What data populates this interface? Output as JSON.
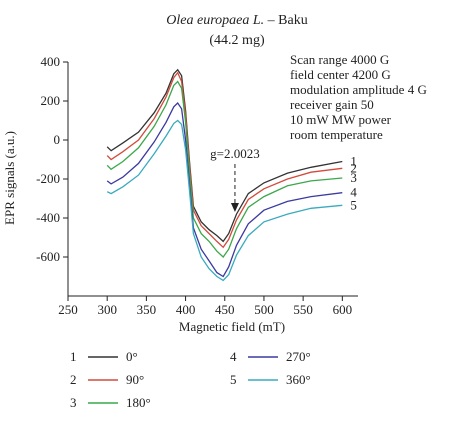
{
  "chart_data": {
    "type": "line",
    "title_italic": "Olea europaea L.",
    "title_rest": " – Baku",
    "subtitle": "(44.2 mg)",
    "xlabel": "Magnetic field (mT)",
    "ylabel": "EPR signals (a.u.)",
    "xlim": [
      250,
      620
    ],
    "ylim": [
      -800,
      400
    ],
    "xticks": [
      250,
      300,
      350,
      400,
      450,
      500,
      550,
      600
    ],
    "yticks": [
      400,
      200,
      0,
      -200,
      -400,
      -600
    ],
    "conditions": [
      "Scan range 4000 G",
      "field center 4200 G",
      "modulation amplitude 4 G",
      "receiver gain 50",
      "10 mW MW power",
      "room temperature"
    ],
    "marker_label": "g=2.0023",
    "marker_x": 463,
    "series": [
      {
        "name": "0°",
        "number": "1",
        "color": "#333333",
        "points": [
          [
            300,
            -35
          ],
          [
            305,
            -55
          ],
          [
            320,
            -15
          ],
          [
            340,
            40
          ],
          [
            360,
            140
          ],
          [
            375,
            240
          ],
          [
            385,
            340
          ],
          [
            390,
            360
          ],
          [
            395,
            330
          ],
          [
            400,
            150
          ],
          [
            405,
            -110
          ],
          [
            410,
            -340
          ],
          [
            420,
            -420
          ],
          [
            430,
            -460
          ],
          [
            440,
            -490
          ],
          [
            448,
            -520
          ],
          [
            455,
            -480
          ],
          [
            465,
            -380
          ],
          [
            480,
            -275
          ],
          [
            500,
            -220
          ],
          [
            530,
            -170
          ],
          [
            560,
            -140
          ],
          [
            600,
            -110
          ]
        ]
      },
      {
        "name": "90°",
        "number": "2",
        "color": "#d24b3c",
        "points": [
          [
            300,
            -80
          ],
          [
            305,
            -100
          ],
          [
            320,
            -60
          ],
          [
            340,
            0
          ],
          [
            360,
            110
          ],
          [
            375,
            220
          ],
          [
            385,
            320
          ],
          [
            390,
            345
          ],
          [
            395,
            300
          ],
          [
            400,
            130
          ],
          [
            405,
            -130
          ],
          [
            410,
            -360
          ],
          [
            420,
            -440
          ],
          [
            430,
            -480
          ],
          [
            440,
            -520
          ],
          [
            448,
            -550
          ],
          [
            455,
            -510
          ],
          [
            465,
            -410
          ],
          [
            480,
            -305
          ],
          [
            500,
            -250
          ],
          [
            530,
            -200
          ],
          [
            560,
            -165
          ],
          [
            600,
            -145
          ]
        ]
      },
      {
        "name": "180°",
        "number": "3",
        "color": "#3aa84a",
        "points": [
          [
            300,
            -130
          ],
          [
            305,
            -150
          ],
          [
            320,
            -110
          ],
          [
            340,
            -40
          ],
          [
            360,
            70
          ],
          [
            375,
            180
          ],
          [
            385,
            280
          ],
          [
            390,
            300
          ],
          [
            395,
            265
          ],
          [
            400,
            90
          ],
          [
            405,
            -170
          ],
          [
            410,
            -400
          ],
          [
            420,
            -480
          ],
          [
            430,
            -520
          ],
          [
            440,
            -570
          ],
          [
            448,
            -600
          ],
          [
            455,
            -560
          ],
          [
            465,
            -455
          ],
          [
            480,
            -345
          ],
          [
            500,
            -290
          ],
          [
            530,
            -235
          ],
          [
            560,
            -210
          ],
          [
            600,
            -195
          ]
        ]
      },
      {
        "name": "270°",
        "number": "4",
        "color": "#3a3aa0",
        "points": [
          [
            300,
            -210
          ],
          [
            305,
            -225
          ],
          [
            320,
            -190
          ],
          [
            340,
            -120
          ],
          [
            360,
            -10
          ],
          [
            375,
            90
          ],
          [
            385,
            170
          ],
          [
            390,
            190
          ],
          [
            395,
            160
          ],
          [
            400,
            0
          ],
          [
            405,
            -230
          ],
          [
            410,
            -450
          ],
          [
            420,
            -560
          ],
          [
            430,
            -620
          ],
          [
            440,
            -680
          ],
          [
            448,
            -700
          ],
          [
            455,
            -650
          ],
          [
            465,
            -540
          ],
          [
            480,
            -430
          ],
          [
            500,
            -360
          ],
          [
            530,
            -315
          ],
          [
            560,
            -290
          ],
          [
            600,
            -270
          ]
        ]
      },
      {
        "name": "360°",
        "number": "5",
        "color": "#3aaabe",
        "points": [
          [
            300,
            -265
          ],
          [
            305,
            -275
          ],
          [
            320,
            -240
          ],
          [
            340,
            -180
          ],
          [
            360,
            -70
          ],
          [
            375,
            20
          ],
          [
            385,
            85
          ],
          [
            390,
            100
          ],
          [
            395,
            80
          ],
          [
            400,
            -50
          ],
          [
            405,
            -260
          ],
          [
            410,
            -480
          ],
          [
            420,
            -600
          ],
          [
            430,
            -660
          ],
          [
            440,
            -700
          ],
          [
            448,
            -720
          ],
          [
            455,
            -690
          ],
          [
            465,
            -590
          ],
          [
            480,
            -490
          ],
          [
            500,
            -420
          ],
          [
            530,
            -380
          ],
          [
            560,
            -350
          ],
          [
            600,
            -335
          ]
        ]
      }
    ],
    "legend_placement": "bottom",
    "grid": false
  }
}
